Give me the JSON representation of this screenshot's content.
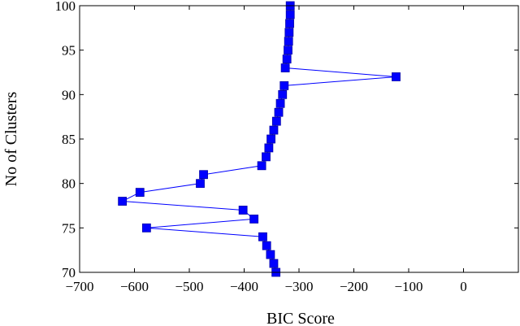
{
  "chart_data": {
    "type": "line",
    "xlabel": "BIC Score",
    "ylabel": "No of Clusters",
    "xlim": [
      -700,
      100
    ],
    "ylim": [
      70,
      100
    ],
    "x_ticks": [
      -700,
      -600,
      -500,
      -400,
      -300,
      -200,
      -100,
      0
    ],
    "x_tick_labels": [
      "−700",
      "−600",
      "−500",
      "−400",
      "−300",
      "−200",
      "−100",
      "0"
    ],
    "y_ticks": [
      70,
      75,
      80,
      85,
      90,
      95,
      100
    ],
    "y_tick_labels": [
      "70",
      "75",
      "80",
      "85",
      "90",
      "95",
      "100"
    ],
    "grid": false,
    "legend": "none",
    "series_color": "#0000ff",
    "marker": "square",
    "series": [
      {
        "points": [
          {
            "x": -342,
            "y": 70
          },
          {
            "x": -346,
            "y": 71
          },
          {
            "x": -352,
            "y": 72
          },
          {
            "x": -359,
            "y": 73
          },
          {
            "x": -366,
            "y": 74
          },
          {
            "x": -578,
            "y": 75
          },
          {
            "x": -382,
            "y": 76
          },
          {
            "x": -402,
            "y": 77
          },
          {
            "x": -622,
            "y": 78
          },
          {
            "x": -590,
            "y": 79
          },
          {
            "x": -480,
            "y": 80
          },
          {
            "x": -474,
            "y": 81
          },
          {
            "x": -368,
            "y": 82
          },
          {
            "x": -360,
            "y": 83
          },
          {
            "x": -355,
            "y": 84
          },
          {
            "x": -351,
            "y": 85
          },
          {
            "x": -346,
            "y": 86
          },
          {
            "x": -341,
            "y": 87
          },
          {
            "x": -337,
            "y": 88
          },
          {
            "x": -334,
            "y": 89
          },
          {
            "x": -330,
            "y": 90
          },
          {
            "x": -327,
            "y": 91
          },
          {
            "x": -123,
            "y": 92
          },
          {
            "x": -325,
            "y": 93
          },
          {
            "x": -322,
            "y": 94
          },
          {
            "x": -320,
            "y": 95
          },
          {
            "x": -319,
            "y": 96
          },
          {
            "x": -318,
            "y": 97
          },
          {
            "x": -317,
            "y": 98
          },
          {
            "x": -316,
            "y": 99
          },
          {
            "x": -316,
            "y": 100
          }
        ]
      }
    ]
  }
}
